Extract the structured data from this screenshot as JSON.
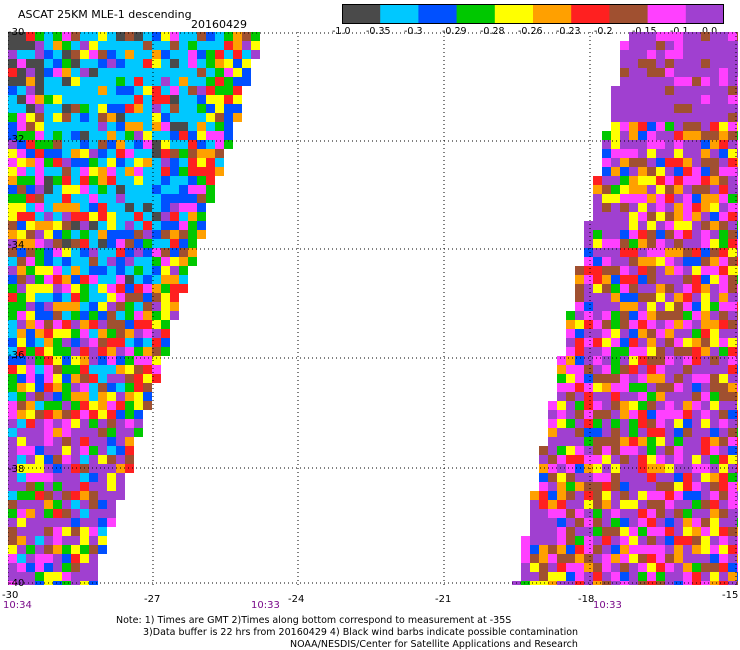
{
  "header": {
    "title": "ASCAT 25KM MLE-1 descending",
    "date": "20160429"
  },
  "colorbar": {
    "colors": [
      "#4a4a4a",
      "#00c8ff",
      "#0050ff",
      "#00c800",
      "#ffff00",
      "#ffa000",
      "#ff2020",
      "#a05030",
      "#ff40ff",
      "#a040d0"
    ],
    "labels": [
      "-1.0",
      "-0.35",
      "-0.3",
      "-0.29",
      "-0.28",
      "-0.26",
      "-0.23",
      "-0.2",
      "-0.15",
      "-0.1",
      "0.0"
    ]
  },
  "map": {
    "x_ticks": [
      "-30",
      "-27",
      "-24",
      "-21",
      "-18",
      "-15"
    ],
    "y_ticks": [
      "-30",
      "-32",
      "-34",
      "-36",
      "-38",
      "-40"
    ],
    "times": [
      "10:34",
      "10:33",
      "10:33"
    ]
  },
  "notes": {
    "line1": "Note: 1) Times are GMT 2)Times along bottom correspond to measurement at -35S",
    "line2": "3)Data buffer is 22 hrs from 20160429 4) Black wind barbs indicate possible contamination",
    "line3": "NOAA/NESDIS/Center for Satellite Applications and Research"
  }
}
